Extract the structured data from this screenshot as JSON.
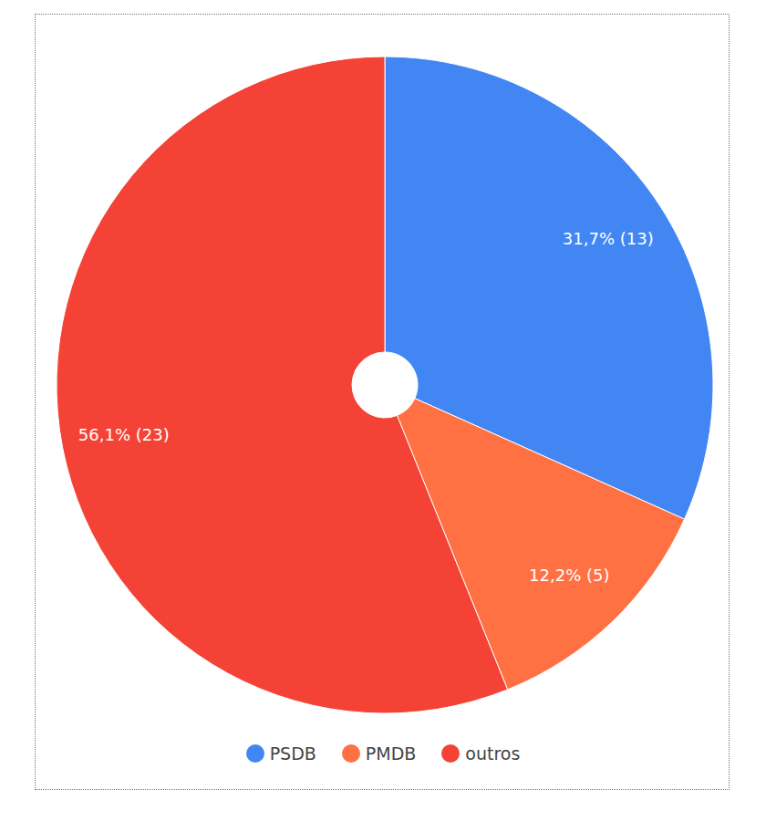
{
  "chart_data": {
    "type": "pie",
    "categories": [
      "PSDB",
      "PMDB",
      "outros"
    ],
    "values": [
      31.7,
      12.2,
      56.1
    ],
    "value_labels": [
      "31,7% (13)",
      "12,2% (5)",
      "56,1% (23)"
    ],
    "colors": [
      "#4286f4",
      "#ff7043",
      "#f44336"
    ],
    "data_labels": true,
    "legend": "bottom"
  }
}
